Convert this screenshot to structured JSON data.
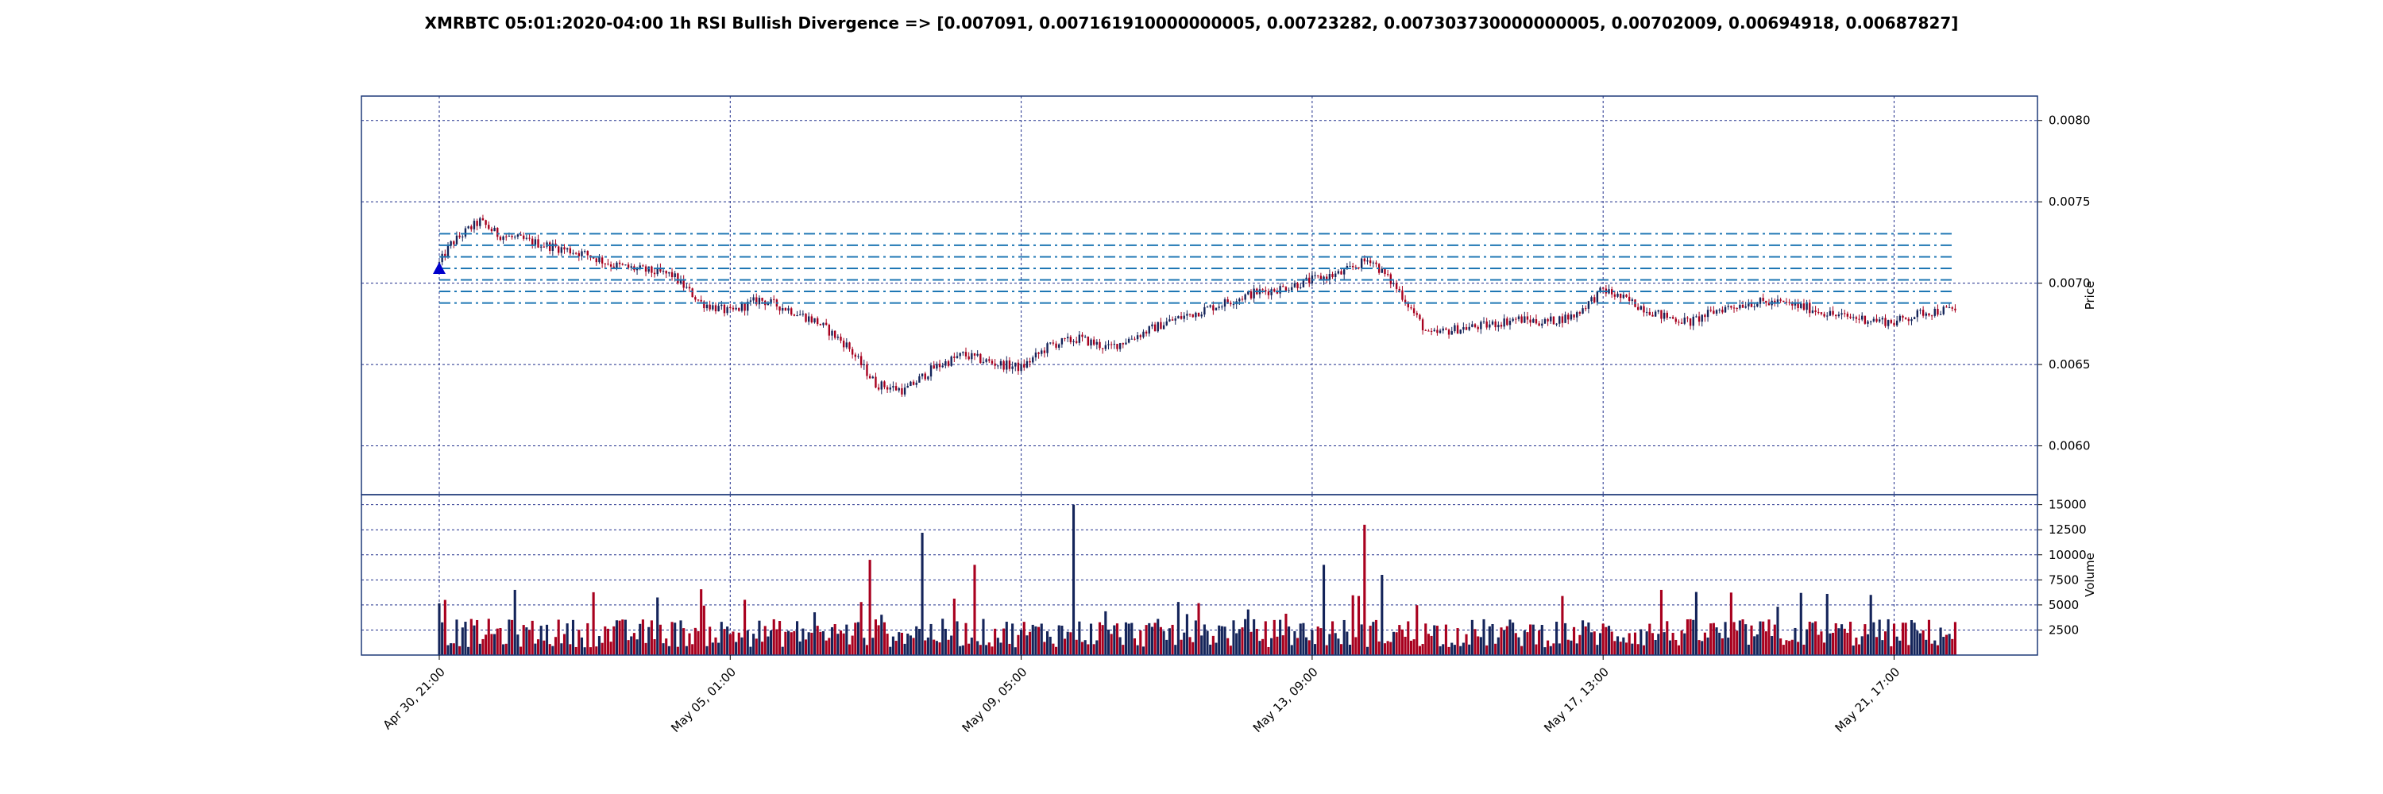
{
  "title": "XMRBTC 05:01:2020-04:00 1h RSI Bullish Divergence => [0.007091, 0.007161910000000005, 0.00723282, 0.007303730000000005, 0.00702009, 0.00694918, 0.00687827]",
  "colors": {
    "frame": "#1f3a78",
    "grid": "#1f2d8a",
    "up": "#14245a",
    "down": "#a8001e",
    "level_line": "#1f77b4",
    "marker": "#0000cc"
  },
  "chart_data": [
    {
      "type": "candlestick",
      "title": "",
      "ylabel": "Price",
      "ylim": [
        0.0057,
        0.00815
      ],
      "yticks": [
        0.006,
        0.0065,
        0.007,
        0.0075,
        0.008
      ],
      "ytick_labels": [
        "0.0060",
        "0.0065",
        "0.0070",
        "0.0075",
        "0.0080"
      ],
      "x_start": "Apr 30, 21:00",
      "x_end": "May 23, 06:00",
      "interval": "1h",
      "xticks": [
        "Apr 30, 21:00",
        "May 05, 01:00",
        "May 09, 05:00",
        "May 13, 09:00",
        "May 17, 13:00",
        "May 21, 17:00"
      ],
      "grid": true,
      "close_path_hours": [
        0,
        4,
        10,
        14,
        20,
        30,
        40,
        50,
        60,
        70,
        80,
        90,
        100,
        110,
        120,
        130,
        140,
        150,
        160,
        170,
        180,
        190,
        200,
        210,
        220,
        230,
        240,
        250,
        260,
        270,
        280,
        290,
        300,
        310,
        320,
        330,
        340,
        350,
        360,
        370,
        380,
        390,
        400,
        410,
        420,
        430,
        440,
        450,
        460,
        470,
        480,
        490,
        500,
        510,
        521
      ],
      "close_path_values": [
        0.00712,
        0.00724,
        0.00733,
        0.00738,
        0.0073,
        0.00726,
        0.00722,
        0.00718,
        0.00711,
        0.00708,
        0.00705,
        0.00688,
        0.00682,
        0.0069,
        0.00684,
        0.00676,
        0.00662,
        0.00638,
        0.00634,
        0.00648,
        0.00656,
        0.00651,
        0.00648,
        0.00662,
        0.00666,
        0.0066,
        0.00668,
        0.00676,
        0.00682,
        0.00688,
        0.00694,
        0.00697,
        0.00702,
        0.00706,
        0.00715,
        0.00695,
        0.00668,
        0.00672,
        0.00674,
        0.00678,
        0.00676,
        0.0068,
        0.00696,
        0.00688,
        0.0068,
        0.00676,
        0.00684,
        0.00688,
        0.00688,
        0.00685,
        0.0068,
        0.00678,
        0.00676,
        0.00682,
        0.00684
      ],
      "levels": [
        0.007091,
        0.007161910000000005,
        0.00723282,
        0.007303730000000005,
        0.00702009,
        0.00694918,
        0.00687827
      ],
      "signal": {
        "label": "RSI Bullish Divergence",
        "at": "Apr 30, 21:00",
        "price": 0.007091
      }
    },
    {
      "type": "bar",
      "ylabel": "Volume",
      "ylim": [
        0,
        16000
      ],
      "yticks": [
        2500,
        5000,
        7500,
        10000,
        12500,
        15000
      ],
      "ytick_labels": [
        "2500",
        "5000",
        "7500",
        "10000",
        "12500",
        "15000"
      ],
      "grid": true,
      "volume_typical": 2200,
      "volume_spikes": [
        {
          "hour": 2,
          "value": 5500
        },
        {
          "hour": 26,
          "value": 6500
        },
        {
          "hour": 148,
          "value": 9500
        },
        {
          "hour": 166,
          "value": 12200
        },
        {
          "hour": 184,
          "value": 9000
        },
        {
          "hour": 218,
          "value": 15000
        },
        {
          "hour": 304,
          "value": 9000
        },
        {
          "hour": 318,
          "value": 13000
        },
        {
          "hour": 324,
          "value": 8000
        },
        {
          "hour": 420,
          "value": 6500
        },
        {
          "hour": 468,
          "value": 6200
        },
        {
          "hour": 492,
          "value": 6000
        }
      ]
    }
  ]
}
